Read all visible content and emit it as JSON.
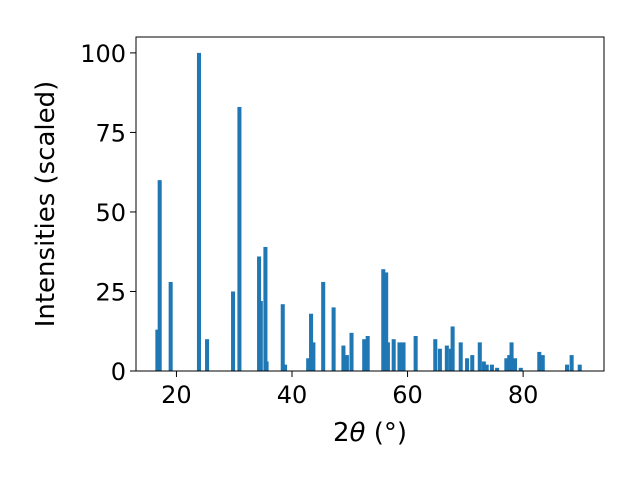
{
  "chart_data": {
    "type": "bar",
    "xlabel_prefix": "2",
    "xlabel_symbol": "θ",
    "xlabel_suffix": " (°)",
    "ylabel": "Intensities (scaled)",
    "xlim": [
      13,
      94
    ],
    "ylim": [
      0,
      105
    ],
    "xticks": [
      20,
      40,
      60,
      80
    ],
    "yticks": [
      0,
      25,
      50,
      75,
      100
    ],
    "bar_color": "#1f77b4",
    "bar_width": 0.7,
    "grid": false,
    "x": [
      16.7,
      17.1,
      19.0,
      23.9,
      25.3,
      29.8,
      30.9,
      34.3,
      34.6,
      35.4,
      35.6,
      38.4,
      38.8,
      42.8,
      43.3,
      43.7,
      45.4,
      47.2,
      48.9,
      49.5,
      50.3,
      52.5,
      53.1,
      55.8,
      56.3,
      56.6,
      57.6,
      58.6,
      59.3,
      61.4,
      64.8,
      65.6,
      66.8,
      67.5,
      67.8,
      69.2,
      70.3,
      71.2,
      72.5,
      73.2,
      73.7,
      74.6,
      75.5,
      77.1,
      77.6,
      78.0,
      78.6,
      79.6,
      82.8,
      83.4,
      87.6,
      88.4,
      89.8
    ],
    "values": [
      13,
      60,
      28,
      100,
      10,
      25,
      83,
      36,
      22,
      39,
      3,
      21,
      2,
      4,
      18,
      9,
      28,
      20,
      8,
      5,
      12,
      10,
      11,
      32,
      31,
      9,
      10,
      9,
      9,
      11,
      10,
      7,
      8,
      7,
      14,
      9,
      4,
      5,
      9,
      3,
      2,
      2,
      1,
      4,
      5,
      9,
      4,
      1,
      6,
      5,
      2,
      5,
      2
    ]
  }
}
